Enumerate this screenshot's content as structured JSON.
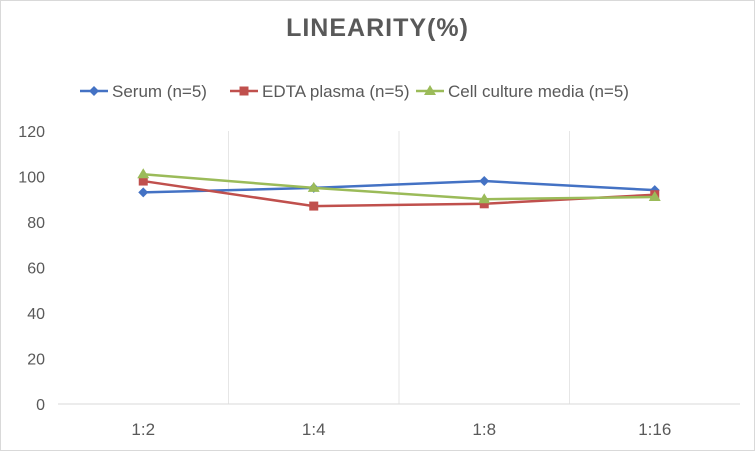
{
  "chart_data": {
    "type": "line",
    "title": "LINEARITY(%)",
    "categories": [
      "1:2",
      "1:4",
      "1:8",
      "1:16"
    ],
    "series": [
      {
        "name": "Serum (n=5)",
        "values": [
          93,
          95,
          98,
          94
        ],
        "color": "#4472c4",
        "marker": "diamond"
      },
      {
        "name": "EDTA plasma (n=5)",
        "values": [
          98,
          87,
          88,
          92
        ],
        "color": "#c0504d",
        "marker": "square"
      },
      {
        "name": "Cell culture media (n=5)",
        "values": [
          101,
          95,
          90,
          91
        ],
        "color": "#9bbb59",
        "marker": "triangle"
      }
    ],
    "ylim": [
      0,
      120
    ],
    "yticks": [
      0,
      20,
      40,
      60,
      80,
      100,
      120
    ],
    "grid": "vertical",
    "legend": "top"
  }
}
